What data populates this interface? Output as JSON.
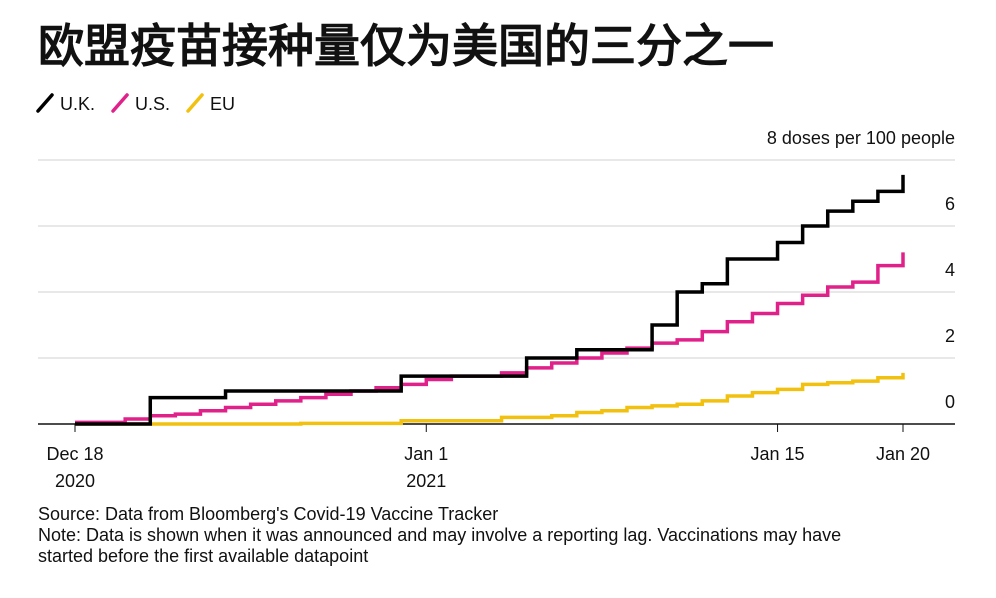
{
  "chart_data": {
    "type": "step",
    "title": "欧盟疫苗接种量仅为美国的三分之一",
    "x": [
      "2020-12-18",
      "2020-12-19",
      "2020-12-20",
      "2020-12-21",
      "2020-12-22",
      "2020-12-23",
      "2020-12-24",
      "2020-12-25",
      "2020-12-26",
      "2020-12-27",
      "2020-12-28",
      "2020-12-29",
      "2020-12-30",
      "2020-12-31",
      "2021-01-01",
      "2021-01-02",
      "2021-01-03",
      "2021-01-04",
      "2021-01-05",
      "2021-01-06",
      "2021-01-07",
      "2021-01-08",
      "2021-01-09",
      "2021-01-10",
      "2021-01-11",
      "2021-01-12",
      "2021-01-13",
      "2021-01-14",
      "2021-01-15",
      "2021-01-16",
      "2021-01-17",
      "2021-01-18",
      "2021-01-19",
      "2021-01-20"
    ],
    "series": [
      {
        "name": "U.K.",
        "color": "#000000",
        "values": [
          0,
          0,
          0,
          0.8,
          0.8,
          0.8,
          1.0,
          1.0,
          1.0,
          1.0,
          1.0,
          1.0,
          1.0,
          1.45,
          1.45,
          1.45,
          1.45,
          1.45,
          2.0,
          2.0,
          2.25,
          2.25,
          2.25,
          3.0,
          4.0,
          4.25,
          5.0,
          5.0,
          5.5,
          6.0,
          6.45,
          6.75,
          7.05,
          7.55
        ]
      },
      {
        "name": "U.S.",
        "color": "#e0218a",
        "values": [
          0.05,
          0.05,
          0.15,
          0.25,
          0.3,
          0.4,
          0.5,
          0.6,
          0.7,
          0.8,
          0.9,
          1.0,
          1.1,
          1.2,
          1.35,
          1.45,
          1.45,
          1.55,
          1.7,
          1.85,
          2.0,
          2.15,
          2.3,
          2.45,
          2.55,
          2.8,
          3.1,
          3.35,
          3.65,
          3.9,
          4.15,
          4.3,
          4.8,
          5.2
        ]
      },
      {
        "name": "EU",
        "color": "#f2c10f",
        "values": [
          0,
          0,
          0,
          0,
          0,
          0,
          0,
          0,
          0,
          0.02,
          0.02,
          0.02,
          0.02,
          0.1,
          0.1,
          0.1,
          0.1,
          0.2,
          0.2,
          0.25,
          0.35,
          0.4,
          0.5,
          0.55,
          0.6,
          0.7,
          0.85,
          0.95,
          1.05,
          1.2,
          1.25,
          1.3,
          1.4,
          1.55
        ]
      }
    ],
    "xlim": [
      "2020-12-18",
      "2021-01-20"
    ],
    "xticks": [
      {
        "value": "2020-12-18",
        "label": [
          "Dec 18",
          "2020"
        ]
      },
      {
        "value": "2021-01-01",
        "label": [
          "Jan 1",
          "2021"
        ]
      },
      {
        "value": "2021-01-15",
        "label": [
          "Jan 15"
        ]
      },
      {
        "value": "2021-01-20",
        "label": [
          "Jan 20"
        ]
      }
    ],
    "ylim": [
      0,
      8
    ],
    "yticks": [
      0,
      2,
      4,
      6,
      {
        "value": 8,
        "label": "8 doses per 100 people"
      }
    ],
    "grid": true,
    "notes": [
      "Source: Data from Bloomberg's Covid-19 Vaccine Tracker",
      "Note: Data is shown when it was announced and may involve a reporting lag. Vaccinations may have",
      "started before the first available datapoint"
    ]
  }
}
